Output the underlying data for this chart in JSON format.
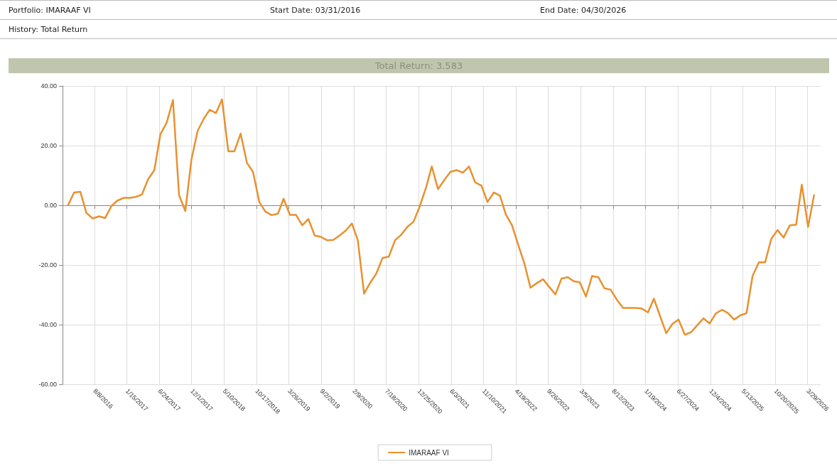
{
  "chart_data": {
    "type": "line",
    "title": "Total Return: 3.583",
    "annotations": [
      "Portfolio: IMARAAF VI",
      "Start Date: 03/31/2016",
      "End Date: 04/30/2026",
      "History: Total Return"
    ],
    "x": [
      "2016-03-31",
      "2016-04-30",
      "2016-05-31",
      "2016-06-30",
      "2016-07-31",
      "2016-08-31",
      "2016-09-30",
      "2016-10-31",
      "2016-11-30",
      "2016-12-31",
      "2017-01-31",
      "2017-02-28",
      "2017-03-31",
      "2017-04-30",
      "2017-05-31",
      "2017-06-30",
      "2017-07-31",
      "2017-08-31",
      "2017-09-30",
      "2017-10-31",
      "2017-11-30",
      "2017-12-31",
      "2018-01-31",
      "2018-02-28",
      "2018-03-31",
      "2018-04-30",
      "2018-05-31",
      "2018-06-30",
      "2018-07-31",
      "2018-08-31",
      "2018-09-30",
      "2018-10-31",
      "2018-11-30",
      "2018-12-31",
      "2019-01-31",
      "2019-02-28",
      "2019-03-31",
      "2019-04-30",
      "2019-05-31",
      "2019-06-30",
      "2019-07-31",
      "2019-08-31",
      "2019-09-30",
      "2019-10-31",
      "2019-11-30",
      "2019-12-31",
      "2020-01-31",
      "2020-02-29",
      "2020-03-31",
      "2020-04-30",
      "2020-05-31",
      "2020-06-30",
      "2020-07-31",
      "2020-08-31",
      "2020-09-30",
      "2020-10-31",
      "2020-11-30",
      "2020-12-31",
      "2021-01-31",
      "2021-02-28",
      "2021-03-31",
      "2021-04-30",
      "2021-05-31",
      "2021-06-30",
      "2021-07-31",
      "2021-08-31",
      "2021-09-30",
      "2021-10-31",
      "2021-11-30",
      "2021-12-31",
      "2022-01-31",
      "2022-02-28",
      "2022-03-31",
      "2022-04-30",
      "2022-05-31",
      "2022-06-30",
      "2022-07-31",
      "2022-08-31",
      "2022-09-30",
      "2022-10-31",
      "2022-11-30",
      "2022-12-31",
      "2023-01-31",
      "2023-02-28",
      "2023-03-31",
      "2023-04-30",
      "2023-05-31",
      "2023-06-30",
      "2023-07-31",
      "2023-08-31",
      "2023-09-30",
      "2023-10-31",
      "2023-11-30",
      "2023-12-31",
      "2024-01-31",
      "2024-02-29",
      "2024-03-31",
      "2024-04-30",
      "2024-05-31",
      "2024-06-30",
      "2024-07-31",
      "2024-08-31",
      "2024-09-30",
      "2024-10-31",
      "2024-11-30",
      "2024-12-31",
      "2025-01-31",
      "2025-02-28",
      "2025-03-31",
      "2025-04-30",
      "2025-05-31",
      "2025-06-30",
      "2025-07-31",
      "2025-08-31",
      "2025-09-30",
      "2025-10-31",
      "2025-11-30",
      "2025-12-31",
      "2026-01-31",
      "2026-02-28",
      "2026-03-31",
      "2026-04-30"
    ],
    "series": [
      {
        "name": "IMARAAF VI",
        "color": "#e8912f",
        "values": [
          0,
          4.3,
          4.5,
          -2.6,
          -4.4,
          -3.7,
          -4.3,
          -0.3,
          1.6,
          2.5,
          2.5,
          2.8,
          3.6,
          8.7,
          11.8,
          23.8,
          27.7,
          35.3,
          3.4,
          -1.9,
          15.3,
          25,
          29.1,
          32,
          30.9,
          35.5,
          18.1,
          18.1,
          24,
          14.2,
          11.2,
          1.1,
          -2.1,
          -3.3,
          -2.8,
          2.2,
          -3.2,
          -3.2,
          -6.7,
          -4.6,
          -10.1,
          -10.6,
          -11.7,
          -11.6,
          -10.2,
          -8.5,
          -6.1,
          -11.7,
          -29.6,
          -26,
          -22.8,
          -17.7,
          -17.2,
          -11.7,
          -9.9,
          -7.2,
          -5.5,
          -0.3,
          6,
          13,
          5.4,
          8.4,
          11.2,
          11.8,
          10.9,
          13,
          7.7,
          6.6,
          1.1,
          4.3,
          3.2,
          -3,
          -6.7,
          -13.1,
          -19.5,
          -27.6,
          -26.1,
          -24.8,
          -27.3,
          -29.9,
          -24.6,
          -24.1,
          -25.5,
          -25.8,
          -30.6,
          -23.7,
          -24.1,
          -27.8,
          -28.3,
          -31.7,
          -34.4,
          -34.4,
          -34.4,
          -34.6,
          -35.9,
          -31.3,
          -37.2,
          -42.9,
          -39.7,
          -38.3,
          -43.4,
          -42.5,
          -40.2,
          -37.9,
          -39.6,
          -36.2,
          -35,
          -36.1,
          -38.3,
          -36.9,
          -36.2,
          -23.7,
          -19.1,
          -19.1,
          -11.3,
          -8.3,
          -10.8,
          -6.7,
          -6.5,
          6.9,
          -7.2,
          3.6
        ]
      }
    ],
    "xlim": [
      "2016-03-04",
      "2026-06-01"
    ],
    "xticks": [
      {
        "value": "2016-08-08",
        "label": "8/8/2016"
      },
      {
        "value": "2017-01-15",
        "label": "1/15/2017"
      },
      {
        "value": "2017-06-24",
        "label": "6/24/2017"
      },
      {
        "value": "2017-12-01",
        "label": "12/1/2017"
      },
      {
        "value": "2018-05-10",
        "label": "5/10/2018"
      },
      {
        "value": "2018-10-17",
        "label": "10/17/2018"
      },
      {
        "value": "2019-03-26",
        "label": "3/26/2019"
      },
      {
        "value": "2019-09-02",
        "label": "9/2/2019"
      },
      {
        "value": "2020-02-09",
        "label": "2/9/2020"
      },
      {
        "value": "2020-07-18",
        "label": "7/18/2020"
      },
      {
        "value": "2020-12-25",
        "label": "12/25/2020"
      },
      {
        "value": "2021-06-03",
        "label": "6/3/2021"
      },
      {
        "value": "2021-11-10",
        "label": "11/10/2021"
      },
      {
        "value": "2022-04-19",
        "label": "4/19/2022"
      },
      {
        "value": "2022-09-26",
        "label": "9/26/2022"
      },
      {
        "value": "2023-03-05",
        "label": "3/5/2023"
      },
      {
        "value": "2023-08-12",
        "label": "8/12/2023"
      },
      {
        "value": "2024-01-19",
        "label": "1/19/2024"
      },
      {
        "value": "2024-06-27",
        "label": "6/27/2024"
      },
      {
        "value": "2024-12-04",
        "label": "12/4/2024"
      },
      {
        "value": "2025-05-13",
        "label": "5/13/2025"
      },
      {
        "value": "2025-10-20",
        "label": "10/20/2025"
      },
      {
        "value": "2026-03-29",
        "label": "3/29/2026"
      }
    ],
    "ylim": [
      -60,
      40
    ],
    "yticks": [
      {
        "value": -60,
        "label": "-60.00"
      },
      {
        "value": -40,
        "label": "-40.00"
      },
      {
        "value": -20,
        "label": "-20.00"
      },
      {
        "value": 0,
        "label": "0.00"
      },
      {
        "value": 20,
        "label": "20.00"
      },
      {
        "value": 40,
        "label": "40.00"
      }
    ],
    "grid": true,
    "legend": "bottom"
  }
}
